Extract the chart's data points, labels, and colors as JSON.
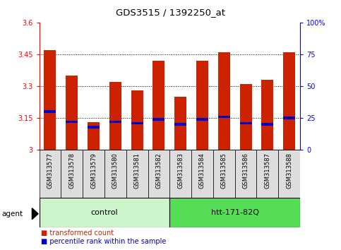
{
  "title": "GDS3515 / 1392250_at",
  "samples": [
    "GSM313577",
    "GSM313578",
    "GSM313579",
    "GSM313580",
    "GSM313581",
    "GSM313582",
    "GSM313583",
    "GSM313584",
    "GSM313585",
    "GSM313586",
    "GSM313587",
    "GSM313588"
  ],
  "transformed_counts": [
    3.47,
    3.35,
    3.13,
    3.32,
    3.28,
    3.42,
    3.25,
    3.42,
    3.46,
    3.31,
    3.33,
    3.46
  ],
  "percentile_ranks_pct": [
    30,
    22,
    18,
    22,
    21,
    24,
    20,
    24,
    26,
    21,
    20,
    25
  ],
  "ylim_left": [
    3.0,
    3.6
  ],
  "ylim_right": [
    0,
    100
  ],
  "yticks_left": [
    3.0,
    3.15,
    3.3,
    3.45,
    3.6
  ],
  "yticks_left_labels": [
    "3",
    "3.15",
    "3.3",
    "3.45",
    "3.6"
  ],
  "yticks_right": [
    0,
    25,
    50,
    75,
    100
  ],
  "yticks_right_labels": [
    "0",
    "25",
    "50",
    "75",
    "100%"
  ],
  "hlines": [
    3.15,
    3.3,
    3.45
  ],
  "groups": [
    {
      "label": "control",
      "start": 0,
      "end": 6,
      "color": "#ccf5cc"
    },
    {
      "label": "htt-171-82Q",
      "start": 6,
      "end": 12,
      "color": "#55dd55"
    }
  ],
  "bar_color": "#cc2200",
  "percentile_color": "#0000cc",
  "legend_items": [
    {
      "color": "#cc2200",
      "label": "transformed count"
    },
    {
      "color": "#0000cc",
      "label": "percentile rank within the sample"
    }
  ],
  "bar_width": 0.55,
  "base_value": 3.0,
  "figsize": [
    4.83,
    3.54
  ],
  "dpi": 100
}
